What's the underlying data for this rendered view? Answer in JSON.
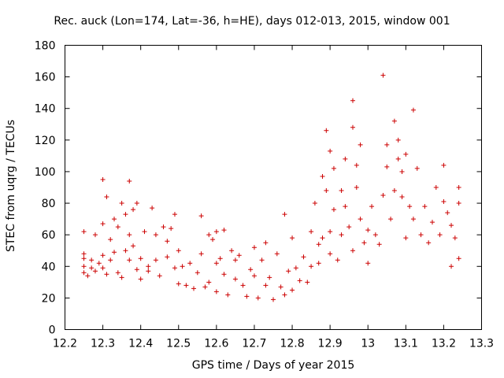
{
  "chart_data": {
    "type": "scatter",
    "title": "Rec. auck (Lon=174, Lat=-36, h=HE), days 012-013, 2015, window 001",
    "xlabel": "GPS time / Days of year 2015",
    "ylabel": "STEC from uqrg / TECUs",
    "xlim": [
      12.2,
      13.3
    ],
    "ylim": [
      0,
      180
    ],
    "xticks": [
      "12.2",
      "12.3",
      "12.4",
      "12.5",
      "12.6",
      "12.7",
      "12.8",
      "12.9",
      "13",
      "13.1",
      "13.2",
      "13.3"
    ],
    "yticks": [
      "0",
      "20",
      "40",
      "60",
      "80",
      "100",
      "120",
      "140",
      "160",
      "180"
    ],
    "grid": false,
    "legend": "none",
    "marker": "plus",
    "color": "#cc0000",
    "series": [
      {
        "points": [
          [
            12.25,
            62
          ],
          [
            12.25,
            48
          ],
          [
            12.25,
            45
          ],
          [
            12.25,
            40
          ],
          [
            12.25,
            36
          ],
          [
            12.26,
            34
          ],
          [
            12.27,
            44
          ],
          [
            12.27,
            39
          ],
          [
            12.28,
            37
          ],
          [
            12.28,
            60
          ],
          [
            12.29,
            42
          ],
          [
            12.3,
            95
          ],
          [
            12.3,
            67
          ],
          [
            12.3,
            47
          ],
          [
            12.3,
            39
          ],
          [
            12.31,
            84
          ],
          [
            12.31,
            35
          ],
          [
            12.32,
            57
          ],
          [
            12.32,
            44
          ],
          [
            12.33,
            70
          ],
          [
            12.33,
            49
          ],
          [
            12.34,
            36
          ],
          [
            12.34,
            65
          ],
          [
            12.35,
            80
          ],
          [
            12.35,
            33
          ],
          [
            12.36,
            73
          ],
          [
            12.36,
            50
          ],
          [
            12.37,
            94
          ],
          [
            12.37,
            60
          ],
          [
            12.37,
            44
          ],
          [
            12.38,
            76
          ],
          [
            12.38,
            53
          ],
          [
            12.39,
            38
          ],
          [
            12.39,
            80
          ],
          [
            12.4,
            45
          ],
          [
            12.4,
            32
          ],
          [
            12.41,
            62
          ],
          [
            12.42,
            40
          ],
          [
            12.42,
            37
          ],
          [
            12.43,
            77
          ],
          [
            12.44,
            60
          ],
          [
            12.44,
            44
          ],
          [
            12.45,
            34
          ],
          [
            12.46,
            65
          ],
          [
            12.47,
            56
          ],
          [
            12.47,
            46
          ],
          [
            12.48,
            64
          ],
          [
            12.49,
            73
          ],
          [
            12.49,
            39
          ],
          [
            12.5,
            50
          ],
          [
            12.5,
            29
          ],
          [
            12.51,
            40
          ],
          [
            12.52,
            28
          ],
          [
            12.53,
            42
          ],
          [
            12.54,
            26
          ],
          [
            12.55,
            36
          ],
          [
            12.56,
            72
          ],
          [
            12.56,
            48
          ],
          [
            12.57,
            27
          ],
          [
            12.58,
            60
          ],
          [
            12.58,
            30
          ],
          [
            12.59,
            57
          ],
          [
            12.6,
            62
          ],
          [
            12.6,
            42
          ],
          [
            12.6,
            24
          ],
          [
            12.61,
            45
          ],
          [
            12.62,
            63
          ],
          [
            12.62,
            35
          ],
          [
            12.63,
            22
          ],
          [
            12.64,
            50
          ],
          [
            12.65,
            44
          ],
          [
            12.65,
            32
          ],
          [
            12.66,
            47
          ],
          [
            12.67,
            28
          ],
          [
            12.68,
            21
          ],
          [
            12.69,
            38
          ],
          [
            12.7,
            52
          ],
          [
            12.7,
            34
          ],
          [
            12.71,
            20
          ],
          [
            12.72,
            44
          ],
          [
            12.73,
            55
          ],
          [
            12.73,
            28
          ],
          [
            12.74,
            33
          ],
          [
            12.75,
            19
          ],
          [
            12.76,
            48
          ],
          [
            12.77,
            27
          ],
          [
            12.78,
            73
          ],
          [
            12.78,
            22
          ],
          [
            12.79,
            37
          ],
          [
            12.8,
            58
          ],
          [
            12.8,
            25
          ],
          [
            12.81,
            39
          ],
          [
            12.82,
            31
          ],
          [
            12.83,
            46
          ],
          [
            12.84,
            30
          ],
          [
            12.85,
            62
          ],
          [
            12.85,
            40
          ],
          [
            12.86,
            80
          ],
          [
            12.87,
            54
          ],
          [
            12.87,
            42
          ],
          [
            12.88,
            97
          ],
          [
            12.88,
            58
          ],
          [
            12.89,
            126
          ],
          [
            12.89,
            88
          ],
          [
            12.9,
            113
          ],
          [
            12.9,
            62
          ],
          [
            12.9,
            48
          ],
          [
            12.91,
            102
          ],
          [
            12.91,
            76
          ],
          [
            12.92,
            44
          ],
          [
            12.93,
            88
          ],
          [
            12.93,
            60
          ],
          [
            12.94,
            108
          ],
          [
            12.94,
            78
          ],
          [
            12.95,
            65
          ],
          [
            12.96,
            145
          ],
          [
            12.96,
            128
          ],
          [
            12.96,
            50
          ],
          [
            12.97,
            104
          ],
          [
            12.97,
            90
          ],
          [
            12.98,
            117
          ],
          [
            12.98,
            70
          ],
          [
            12.99,
            55
          ],
          [
            13.0,
            42
          ],
          [
            13.0,
            63
          ],
          [
            13.01,
            78
          ],
          [
            13.02,
            60
          ],
          [
            13.03,
            54
          ],
          [
            13.04,
            161
          ],
          [
            13.04,
            85
          ],
          [
            13.05,
            117
          ],
          [
            13.05,
            103
          ],
          [
            13.06,
            70
          ],
          [
            13.07,
            132
          ],
          [
            13.07,
            88
          ],
          [
            13.08,
            120
          ],
          [
            13.08,
            108
          ],
          [
            13.09,
            100
          ],
          [
            13.09,
            84
          ],
          [
            13.1,
            111
          ],
          [
            13.1,
            58
          ],
          [
            13.11,
            78
          ],
          [
            13.12,
            139
          ],
          [
            13.12,
            70
          ],
          [
            13.13,
            102
          ],
          [
            13.14,
            60
          ],
          [
            13.15,
            78
          ],
          [
            13.16,
            55
          ],
          [
            13.17,
            68
          ],
          [
            13.18,
            90
          ],
          [
            13.19,
            60
          ],
          [
            13.2,
            104
          ],
          [
            13.2,
            81
          ],
          [
            13.21,
            74
          ],
          [
            13.22,
            66
          ],
          [
            13.22,
            40
          ],
          [
            13.23,
            58
          ],
          [
            13.24,
            90
          ],
          [
            13.24,
            80
          ],
          [
            13.24,
            45
          ]
        ]
      }
    ]
  }
}
